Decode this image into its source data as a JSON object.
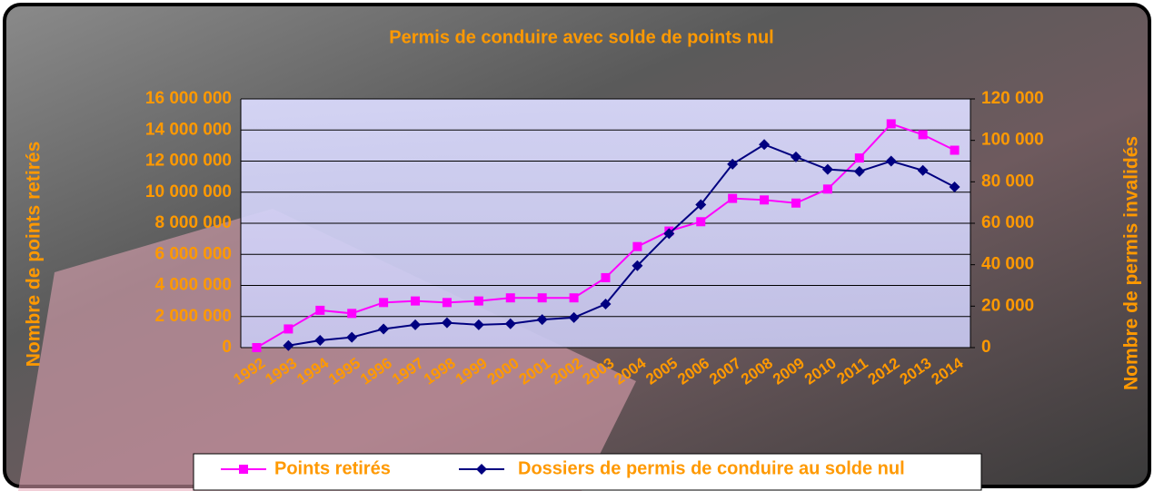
{
  "chart_data": {
    "type": "line",
    "title": "Permis de conduire avec solde de points nul",
    "y_label": "Nombre de points retirés",
    "y2_label": "Nombre de permis invalidés",
    "categories": [
      "1992",
      "1993",
      "1994",
      "1995",
      "1996",
      "1997",
      "1998",
      "1999",
      "2000",
      "2001",
      "2002",
      "2003",
      "2004",
      "2005",
      "2006",
      "2007",
      "2008",
      "2009",
      "2010",
      "2011",
      "2012",
      "2013",
      "2014"
    ],
    "series": [
      {
        "name": "Points retirés",
        "color": "#ff00ff",
        "marker": "square",
        "values": [
          0,
          1200000,
          2400000,
          2200000,
          2900000,
          3000000,
          2900000,
          3000000,
          3200000,
          3200000,
          3200000,
          4500000,
          6500000,
          7500000,
          8100000,
          9600000,
          9500000,
          9300000,
          10200000,
          12200000,
          14400000,
          13700000,
          12700000
        ]
      },
      {
        "name": "Dossiers de permis de conduire au solde nul",
        "color": "#000080",
        "marker": "diamond",
        "axis": "y2",
        "values": [
          null,
          1000,
          3500,
          5000,
          9000,
          11000,
          12000,
          11000,
          11500,
          13500,
          14500,
          21000,
          39500,
          55000,
          69000,
          88500,
          98000,
          92000,
          86000,
          85000,
          90000,
          85500,
          77500
        ]
      }
    ],
    "ylim": [
      0,
      16000000
    ],
    "yticks": [
      0,
      {
        "value": 2000000,
        "label": "2 000 000"
      },
      {
        "value": 4000000,
        "label": "4 000 000"
      },
      {
        "value": 6000000,
        "label": "6 000 000"
      },
      {
        "value": 8000000,
        "label": "8 000 000"
      },
      {
        "value": 10000000,
        "label": "10 000 000"
      },
      {
        "value": 12000000,
        "label": "12 000 000"
      },
      {
        "value": 14000000,
        "label": "14 000 000"
      },
      {
        "value": 16000000,
        "label": "16 000 000"
      }
    ],
    "y2lim": [
      0,
      120000
    ],
    "y2ticks": [
      0,
      {
        "value": 20000,
        "label": "20 000"
      },
      {
        "value": 40000,
        "label": "40 000"
      },
      {
        "value": 60000,
        "label": "60 000"
      },
      {
        "value": 80000,
        "label": "80 000"
      },
      {
        "value": 100000,
        "label": "100 000"
      },
      {
        "value": 120000,
        "label": "120 000"
      }
    ],
    "grid": true,
    "legend": "bottom"
  }
}
